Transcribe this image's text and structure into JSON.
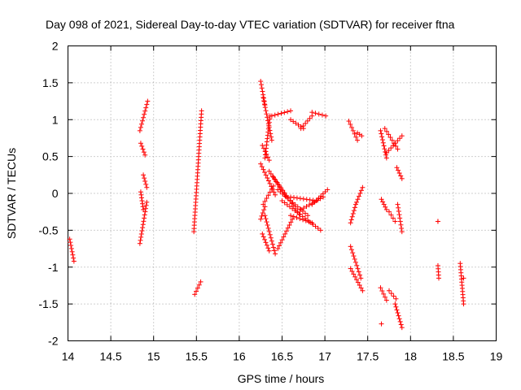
{
  "chart_data": {
    "type": "scatter",
    "title": "Day 098 of 2021, Sidereal Day-to-day VTEC variation (SDTVAR) for receiver ftna",
    "xlabel": "GPS time / hours",
    "ylabel": "SDTVAR / TECUs",
    "xlim": [
      14,
      19
    ],
    "ylim": [
      -2,
      2
    ],
    "xticks": [
      14,
      14.5,
      15,
      15.5,
      16,
      16.5,
      17,
      17.5,
      18,
      18.5,
      19
    ],
    "yticks": [
      -2,
      -1.5,
      -1,
      -0.5,
      0,
      0.5,
      1,
      1.5,
      2
    ],
    "xtick_labels": [
      "14",
      "14.5",
      "15",
      "15.5",
      "16",
      "16.5",
      "17",
      "17.5",
      "18",
      "18.5",
      "19"
    ],
    "ytick_labels": [
      "-2",
      "-1.5",
      "-1",
      "-0.5",
      "0",
      "0.5",
      "1",
      "1.5",
      "2"
    ],
    "grid": true,
    "marker": "+",
    "color": "#ff0000",
    "segments": [
      {
        "x": [
          14.02,
          14.07
        ],
        "y": [
          -0.62,
          -0.92
        ]
      },
      {
        "x": [
          14.84,
          14.93
        ],
        "y": [
          0.85,
          1.25
        ]
      },
      {
        "x": [
          14.85,
          14.9
        ],
        "y": [
          0.68,
          0.52
        ]
      },
      {
        "x": [
          14.88,
          14.92
        ],
        "y": [
          0.25,
          0.08
        ]
      },
      {
        "x": [
          14.85,
          14.88
        ],
        "y": [
          0.02,
          -0.22
        ]
      },
      {
        "x": [
          14.84,
          14.92
        ],
        "y": [
          -0.68,
          -0.12
        ]
      },
      {
        "x": [
          15.47,
          15.56
        ],
        "y": [
          -0.52,
          1.12
        ]
      },
      {
        "x": [
          15.48,
          15.55
        ],
        "y": [
          -1.37,
          -1.2
        ]
      },
      {
        "x": [
          16.25,
          16.3
        ],
        "y": [
          1.52,
          1.2
        ]
      },
      {
        "x": [
          16.28,
          16.38
        ],
        "y": [
          1.3,
          0.72
        ]
      },
      {
        "x": [
          16.27,
          16.35
        ],
        "y": [
          0.65,
          0.45
        ]
      },
      {
        "x": [
          16.3,
          16.36
        ],
        "y": [
          0.48,
          1.05
        ]
      },
      {
        "x": [
          16.38,
          16.6
        ],
        "y": [
          1.05,
          1.12
        ]
      },
      {
        "x": [
          16.6,
          16.75
        ],
        "y": [
          1.0,
          0.88
        ]
      },
      {
        "x": [
          16.72,
          16.85
        ],
        "y": [
          0.88,
          1.05
        ]
      },
      {
        "x": [
          16.85,
          17.01
        ],
        "y": [
          1.1,
          1.05
        ]
      },
      {
        "x": [
          16.25,
          16.42
        ],
        "y": [
          0.4,
          -0.02
        ]
      },
      {
        "x": [
          16.28,
          16.4
        ],
        "y": [
          -0.15,
          0.1
        ]
      },
      {
        "x": [
          16.25,
          16.3
        ],
        "y": [
          -0.35,
          -0.18
        ]
      },
      {
        "x": [
          16.27,
          16.35
        ],
        "y": [
          -0.55,
          -0.78
        ]
      },
      {
        "x": [
          16.3,
          16.42
        ],
        "y": [
          -0.3,
          -0.82
        ]
      },
      {
        "x": [
          16.35,
          16.55
        ],
        "y": [
          0.3,
          -0.05
        ]
      },
      {
        "x": [
          16.4,
          16.7
        ],
        "y": [
          0.22,
          -0.28
        ]
      },
      {
        "x": [
          16.45,
          16.8
        ],
        "y": [
          0.05,
          -0.3
        ]
      },
      {
        "x": [
          16.5,
          16.95
        ],
        "y": [
          -0.1,
          -0.5
        ]
      },
      {
        "x": [
          16.45,
          16.62
        ],
        "y": [
          -0.75,
          -0.35
        ]
      },
      {
        "x": [
          16.6,
          16.85
        ],
        "y": [
          -0.3,
          -0.4
        ]
      },
      {
        "x": [
          16.6,
          16.9
        ],
        "y": [
          -0.05,
          -0.1
        ]
      },
      {
        "x": [
          16.72,
          16.98
        ],
        "y": [
          -0.22,
          -0.05
        ]
      },
      {
        "x": [
          16.85,
          17.03
        ],
        "y": [
          -0.15,
          0.05
        ]
      },
      {
        "x": [
          17.28,
          17.38
        ],
        "y": [
          0.98,
          0.72
        ]
      },
      {
        "x": [
          17.38,
          17.43
        ],
        "y": [
          0.82,
          0.78
        ]
      },
      {
        "x": [
          17.37,
          17.44
        ],
        "y": [
          -0.12,
          0.08
        ]
      },
      {
        "x": [
          17.3,
          17.36
        ],
        "y": [
          -0.4,
          -0.15
        ]
      },
      {
        "x": [
          17.3,
          17.42
        ],
        "y": [
          -0.72,
          -1.15
        ]
      },
      {
        "x": [
          17.3,
          17.44
        ],
        "y": [
          -1.02,
          -1.32
        ]
      },
      {
        "x": [
          17.65,
          17.72
        ],
        "y": [
          0.85,
          0.48
        ]
      },
      {
        "x": [
          17.7,
          17.85
        ],
        "y": [
          0.88,
          0.6
        ]
      },
      {
        "x": [
          17.72,
          17.9
        ],
        "y": [
          0.55,
          0.78
        ]
      },
      {
        "x": [
          17.84,
          17.9
        ],
        "y": [
          0.35,
          0.2
        ]
      },
      {
        "x": [
          17.66,
          17.72
        ],
        "y": [
          -0.08,
          -0.22
        ]
      },
      {
        "x": [
          17.75,
          17.82
        ],
        "y": [
          -0.25,
          -0.38
        ]
      },
      {
        "x": [
          17.85,
          17.9
        ],
        "y": [
          -0.15,
          -0.52
        ]
      },
      {
        "x": [
          17.65,
          17.72
        ],
        "y": [
          -1.28,
          -1.45
        ]
      },
      {
        "x": [
          17.75,
          17.83
        ],
        "y": [
          -1.32,
          -1.43
        ]
      },
      {
        "x": [
          17.82,
          17.9
        ],
        "y": [
          -1.5,
          -1.82
        ]
      },
      {
        "x": [
          18.32,
          18.32
        ],
        "y": [
          -0.38,
          -0.38
        ]
      },
      {
        "x": [
          18.32,
          18.33
        ],
        "y": [
          -0.98,
          -1.15
        ]
      },
      {
        "x": [
          18.58,
          18.62
        ],
        "y": [
          -0.95,
          -1.5
        ]
      }
    ],
    "points": [
      [
        17.66,
        -1.77
      ],
      [
        18.62,
        -1.15
      ]
    ]
  }
}
